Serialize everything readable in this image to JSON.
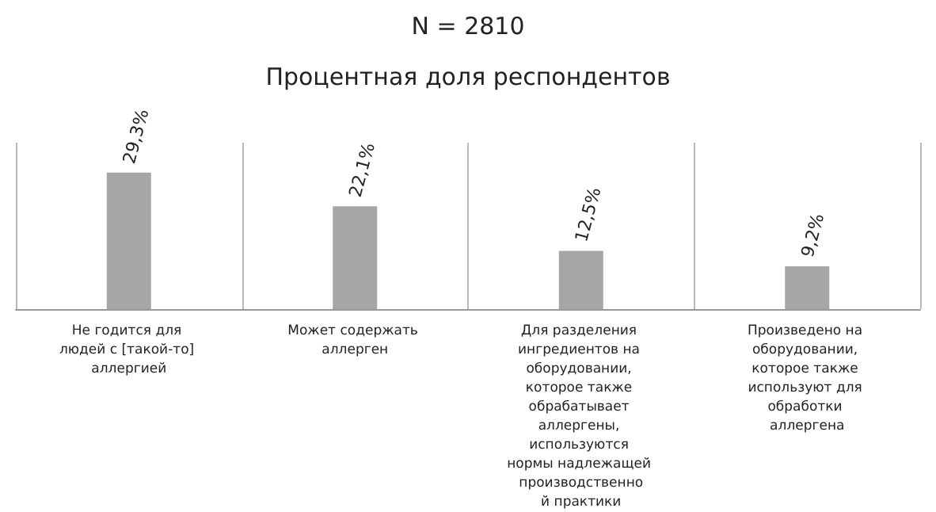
{
  "chart_data": {
    "type": "bar",
    "title": "N = 2810",
    "subtitle": "Процентная доля респондентов",
    "categories": [
      "Не годится для людей с [такой-то] аллергией",
      "Может содержать аллерген",
      "Для разделения ингредиентов на оборудовании, которое также обрабатывает аллергены, используются нормы надлежащей производственной практики",
      "Произведено на оборудовании, которое также используют для обработки аллергена"
    ],
    "values": [
      29.3,
      22.1,
      12.5,
      9.2
    ],
    "value_labels": [
      "29,3%",
      "22,1%",
      "12,5%",
      "9,2%"
    ],
    "color": "#a6a6a6",
    "grid": "x"
  }
}
